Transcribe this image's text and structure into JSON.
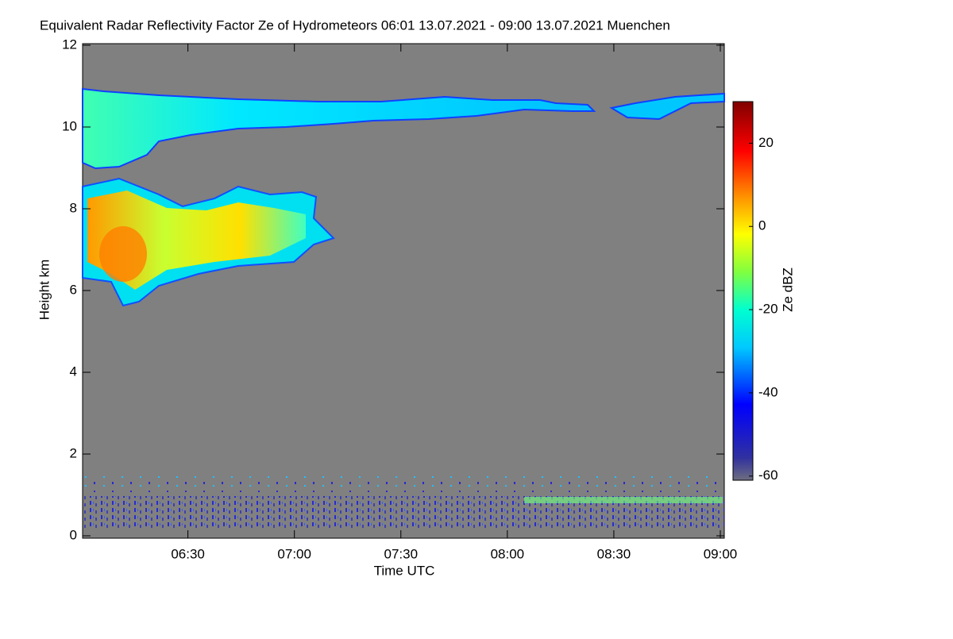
{
  "chart_data": {
    "type": "heatmap",
    "title": "Equivalent Radar Reflectivity Factor Ze of Hydrometeors   06:01 13.07.2021 - 09:00 13.07.2021 Muenchen",
    "x_label": "Time UTC",
    "y_label": "Height km",
    "colorbar_label": "Ze dBZ",
    "xlim": [
      361,
      540
    ],
    "xticks": [
      {
        "value": 390,
        "label": "06:30"
      },
      {
        "value": 420,
        "label": "07:00"
      },
      {
        "value": 450,
        "label": "07:30"
      },
      {
        "value": 480,
        "label": "08:00"
      },
      {
        "value": 510,
        "label": "08:30"
      },
      {
        "value": 540,
        "label": "09:00"
      }
    ],
    "ylim": [
      0,
      12
    ],
    "yticks": [
      0,
      2,
      4,
      6,
      8,
      10,
      12
    ],
    "zlim": [
      -61,
      30
    ],
    "zticks": [
      -60,
      -40,
      -20,
      0,
      20
    ]
  }
}
